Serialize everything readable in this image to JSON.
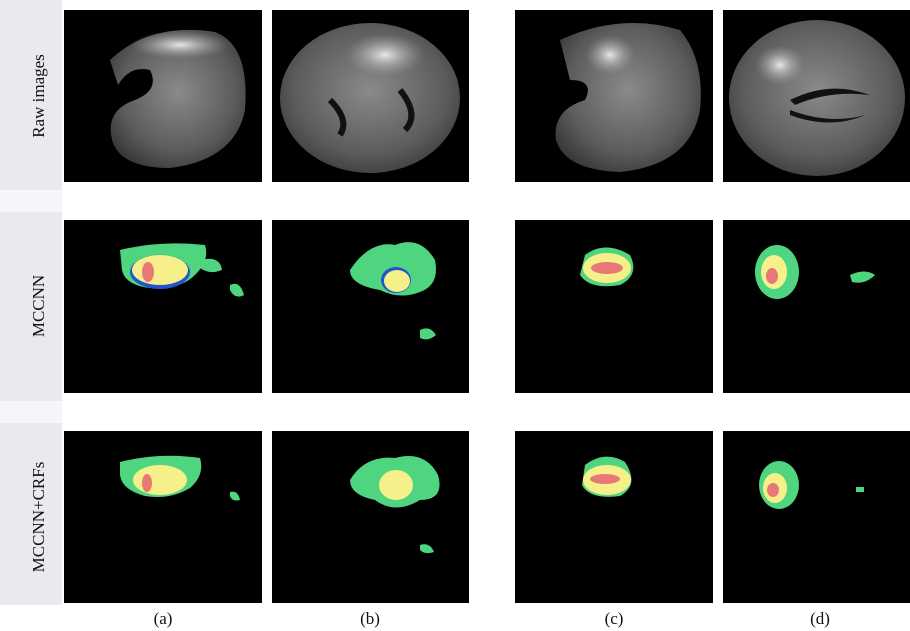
{
  "row_labels": [
    "Raw images",
    "MCCNN",
    "MCCNN+CRFs"
  ],
  "column_labels": [
    "(a)",
    "(b)",
    "(c)",
    "(d)"
  ]
}
